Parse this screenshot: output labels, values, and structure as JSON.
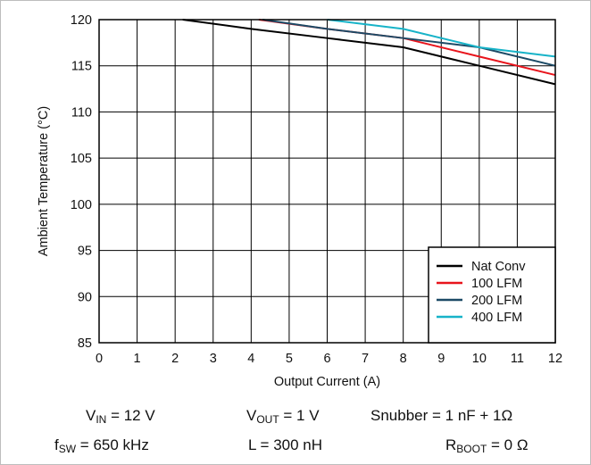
{
  "chart_data": {
    "type": "line",
    "xlabel": "Output Current (A)",
    "ylabel": "Ambient Temperature (°C)",
    "xlim": [
      0,
      12
    ],
    "ylim": [
      85,
      120
    ],
    "xticks": [
      "0",
      "1",
      "2",
      "3",
      "4",
      "5",
      "6",
      "7",
      "8",
      "9",
      "10",
      "11",
      "12"
    ],
    "yticks": [
      "85",
      "90",
      "95",
      "100",
      "105",
      "110",
      "115",
      "120"
    ],
    "grid": true,
    "legend_position": "bottom-right",
    "series": [
      {
        "name": "Nat Conv",
        "color": "#000000",
        "x": [
          2.2,
          4,
          6,
          8,
          10,
          12
        ],
        "y": [
          120,
          119,
          118,
          117,
          115,
          113
        ]
      },
      {
        "name": "100 LFM",
        "color": "#e8141c",
        "x": [
          4.2,
          6,
          8,
          10,
          12
        ],
        "y": [
          120,
          119,
          118,
          116,
          114
        ]
      },
      {
        "name": "200 LFM",
        "color": "#1c4a66",
        "x": [
          4.3,
          6,
          8,
          10,
          12
        ],
        "y": [
          120,
          119,
          118,
          117,
          115
        ]
      },
      {
        "name": "400 LFM",
        "color": "#17b3c8",
        "x": [
          6,
          8,
          10,
          12
        ],
        "y": [
          120,
          119,
          117,
          116
        ]
      }
    ]
  },
  "conditions": {
    "vin_label": "V",
    "vin_sub": "IN",
    "vin_value": " = 12 V",
    "vout_label": "V",
    "vout_sub": "OUT",
    "vout_value": " = 1 V",
    "snubber": "Snubber = 1 nF + 1Ω",
    "fsw_label": "f",
    "fsw_sub": "SW",
    "fsw_value": " = 650 kHz",
    "inductor": "L = 300 nH",
    "rboot_label": "R",
    "rboot_sub": "BOOT",
    "rboot_value": " = 0 Ω"
  }
}
